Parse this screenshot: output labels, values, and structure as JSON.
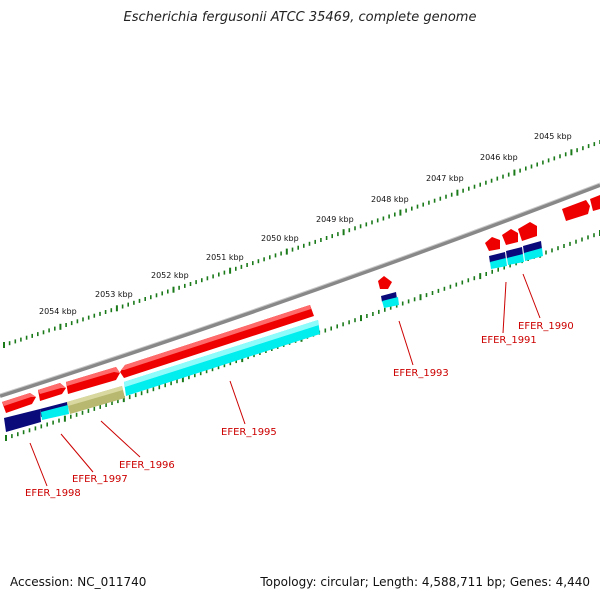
{
  "title": "Escherichia fergusonii ATCC 35469, complete genome",
  "footer": {
    "accession": "Accession: NC_011740",
    "summary": "Topology: circular; Length: 4,588,711 bp; Genes: 4,440"
  },
  "scale_labels": [
    "2045 kbp",
    "2046 kbp",
    "2047 kbp",
    "2048 kbp",
    "2049 kbp",
    "2050 kbp",
    "2051 kbp",
    "2052 kbp",
    "2053 kbp",
    "2054 kbp"
  ],
  "gene_labels": [
    "EFER_1990",
    "EFER_1991",
    "EFER_1993",
    "EFER_1995",
    "EFER_1996",
    "EFER_1997",
    "EFER_1998"
  ],
  "colors": {
    "cds": "#ee0000",
    "gene": "#00eeee",
    "strand": "#0a0a7a",
    "pseudo": "#b8b870",
    "backbone": "#888888",
    "scale": "#1a7a1a",
    "label": "#cc0000"
  }
}
